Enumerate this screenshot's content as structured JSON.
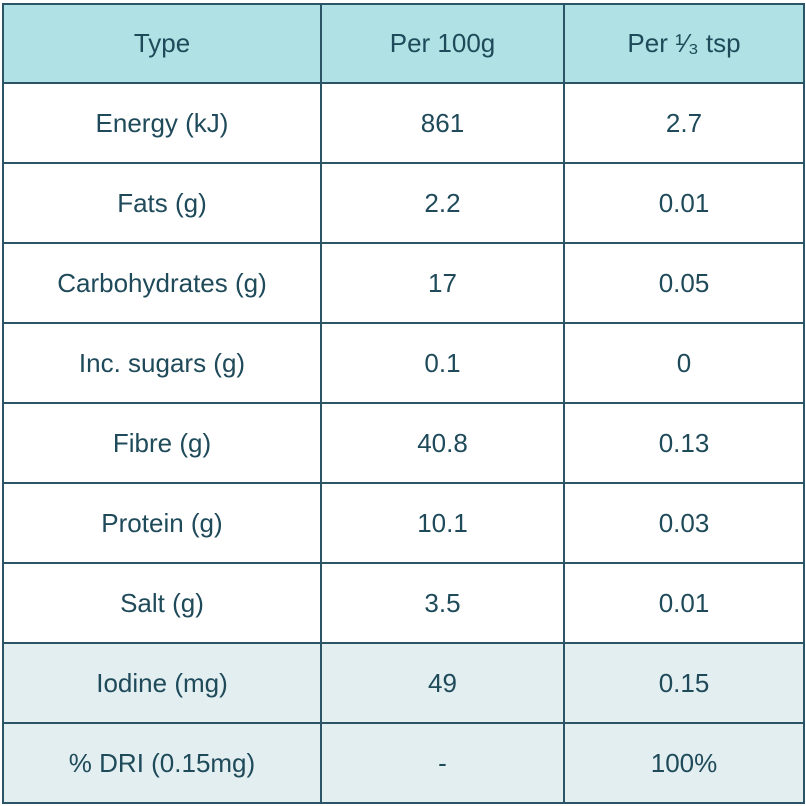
{
  "table": {
    "headers": [
      "Type",
      "Per 100g",
      "Per ¹⁄₃ tsp"
    ],
    "rows": [
      {
        "type": "Energy (kJ)",
        "per_100g": "861",
        "per_third_tsp": "2.7"
      },
      {
        "type": "Fats (g)",
        "per_100g": "2.2",
        "per_third_tsp": "0.01"
      },
      {
        "type": "Carbohydrates (g)",
        "per_100g": "17",
        "per_third_tsp": "0.05"
      },
      {
        "type": "Inc. sugars (g)",
        "per_100g": "0.1",
        "per_third_tsp": "0"
      },
      {
        "type": "Fibre (g)",
        "per_100g": "40.8",
        "per_third_tsp": "0.13"
      },
      {
        "type": "Protein (g)",
        "per_100g": "10.1",
        "per_third_tsp": "0.03"
      },
      {
        "type": "Salt (g)",
        "per_100g": "3.5",
        "per_third_tsp": "0.01"
      },
      {
        "type": "Iodine (mg)",
        "per_100g": "49",
        "per_third_tsp": "0.15"
      },
      {
        "type": "% DRI (0.15mg)",
        "per_100g": "-",
        "per_third_tsp": "100%"
      }
    ]
  },
  "colors": {
    "header_bg": "#b0e1e4",
    "highlight_row_bg": "#e2eef0",
    "border": "#2b5566",
    "text": "#1f4a5a"
  }
}
